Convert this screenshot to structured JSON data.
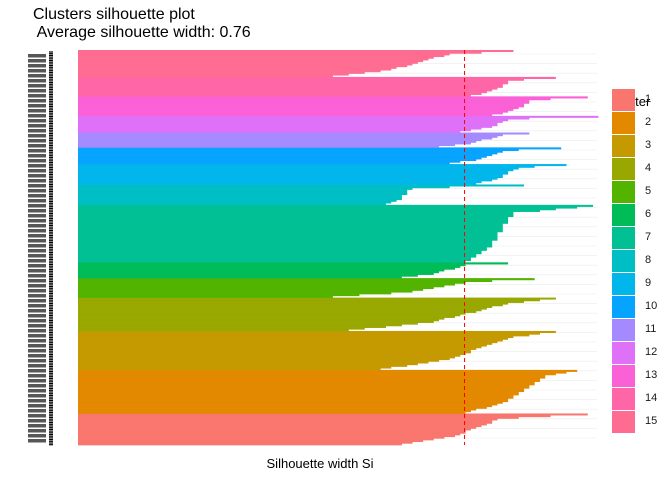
{
  "chart_data": {
    "type": "bar",
    "title": "Clusters silhouette plot",
    "subtitle": " Average silhouette width: 0.76",
    "xlabel": "Silhouette width Si",
    "ylabel": "",
    "average_silhouette_width": 0.76,
    "xlim": [
      0,
      1
    ],
    "orientation": "horizontal",
    "legend": {
      "title": "cluster",
      "position": "right"
    },
    "average_line_color": "#ff0000",
    "clusters": [
      {
        "name": "1",
        "color": "#F8766D",
        "start": 0.96,
        "mid": 0.8,
        "end": 0.61
      },
      {
        "name": "2",
        "color": "#E38900",
        "start": 0.94,
        "mid": 0.88,
        "end": 0.73
      },
      {
        "name": "3",
        "color": "#C49A00",
        "start": 0.9,
        "mid": 0.82,
        "end": 0.57
      },
      {
        "name": "4",
        "color": "#99A800",
        "start": 0.9,
        "mid": 0.82,
        "end": 0.51
      },
      {
        "name": "5",
        "color": "#53B400",
        "start": 0.86,
        "mid": 0.75,
        "end": 0.48
      },
      {
        "name": "6",
        "color": "#00BC56",
        "start": 0.81,
        "mid": 0.73,
        "end": 0.61
      },
      {
        "name": "7",
        "color": "#00C094",
        "start": 0.97,
        "mid": 0.82,
        "end": 0.73
      },
      {
        "name": "8",
        "color": "#00BFC4",
        "start": 0.84,
        "mid": 0.63,
        "end": 0.58
      },
      {
        "name": "9",
        "color": "#00B6EB",
        "start": 0.92,
        "mid": 0.83,
        "end": 0.75
      },
      {
        "name": "10",
        "color": "#06A4FF",
        "start": 0.91,
        "mid": 0.81,
        "end": 0.7
      },
      {
        "name": "11",
        "color": "#A58AFF",
        "start": 0.85,
        "mid": 0.8,
        "end": 0.68
      },
      {
        "name": "12",
        "color": "#DF70F8",
        "start": 0.98,
        "mid": 0.82,
        "end": 0.72
      },
      {
        "name": "13",
        "color": "#FB61D7",
        "start": 0.96,
        "mid": 0.86,
        "end": 0.78
      },
      {
        "name": "14",
        "color": "#FF66A8",
        "start": 0.9,
        "mid": 0.82,
        "end": 0.74
      },
      {
        "name": "15",
        "color": "#FF6C91",
        "start": 0.82,
        "mid": 0.7,
        "end": 0.48
      }
    ]
  }
}
